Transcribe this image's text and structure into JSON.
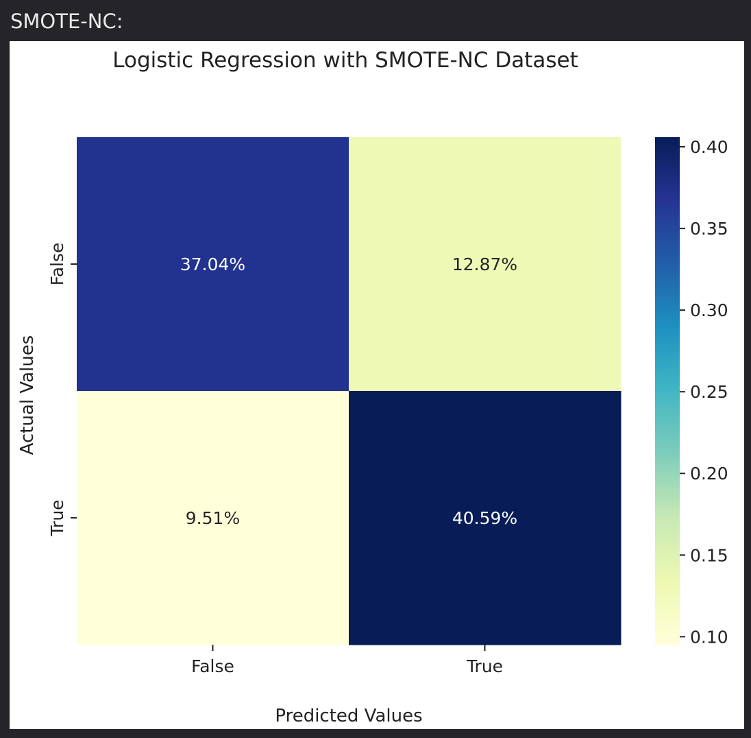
{
  "cell": {
    "label": "SMOTE-NC:"
  },
  "chart_data": {
    "type": "heatmap",
    "title": "Logistic Regression with SMOTE-NC Dataset",
    "xlabel": "Predicted Values",
    "ylabel": "Actual Values",
    "x_categories": [
      "False",
      "True"
    ],
    "y_categories": [
      "False",
      "True"
    ],
    "values": [
      [
        0.3704,
        0.1287
      ],
      [
        0.0951,
        0.4059
      ]
    ],
    "annotations": [
      [
        "37.04%",
        "12.87%"
      ],
      [
        "9.51%",
        "40.59%"
      ]
    ],
    "colormap": "YlGnBu",
    "colorbar": {
      "range": [
        0.0951,
        0.4059
      ],
      "ticks": [
        0.4,
        0.35,
        0.3,
        0.25,
        0.2,
        0.15,
        0.1
      ],
      "tick_labels": [
        "0.40",
        "0.35",
        "0.30",
        "0.25",
        "0.20",
        "0.15",
        "0.10"
      ]
    }
  }
}
